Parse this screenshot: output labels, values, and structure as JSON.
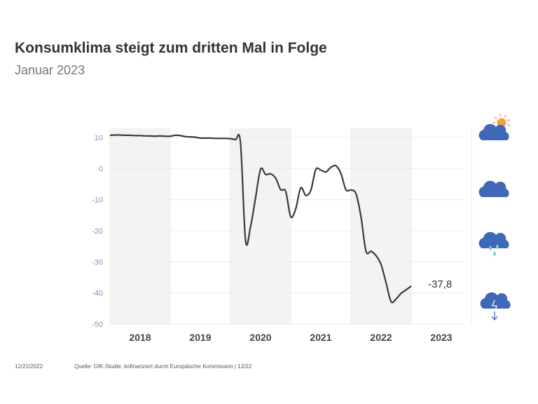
{
  "header": {
    "title": "Konsumklima steigt zum dritten Mal in Folge",
    "subtitle": "Januar 2023"
  },
  "footer": {
    "date": "12/21/2022",
    "source": "Quelle: GfK-Studie, kofinanziert durch Europäische Kommission | 12/22"
  },
  "icons": [
    "sun-behind-cloud-icon",
    "cloud-icon",
    "rain-cloud-icon",
    "storm-cloud-icon"
  ],
  "colors": {
    "line": "#3a3a3a",
    "band": "#f3f3f3",
    "grid": "#f6e9dc",
    "cloud": "#3f68b8",
    "sun": "#f0a040",
    "rain": "#7fd0d0"
  },
  "chart_data": {
    "type": "line",
    "title": "",
    "xlabel": "",
    "ylabel": "",
    "ylim": [
      -50,
      10
    ],
    "yticks": [
      "10",
      "0",
      "-10",
      "-20",
      "-30",
      "-40",
      "-50"
    ],
    "ytick_values": [
      10,
      0,
      -10,
      -20,
      -30,
      -40,
      -50
    ],
    "xticks": [
      "2018",
      "2019",
      "2020",
      "2021",
      "2022",
      "2023"
    ],
    "grid": true,
    "shaded_years": [
      "2018",
      "2020",
      "2022"
    ],
    "end_label": "-37,8",
    "x_start": "2018-01",
    "x_end": "2023-01",
    "values": [
      10.7,
      10.8,
      10.8,
      10.7,
      10.7,
      10.6,
      10.6,
      10.5,
      10.5,
      10.4,
      10.5,
      10.4,
      10.4,
      10.7,
      10.6,
      10.3,
      10.2,
      10.1,
      9.8,
      9.8,
      9.8,
      9.7,
      9.7,
      9.7,
      9.6,
      9.3,
      8.3,
      -23.1,
      -18.6,
      -9.4,
      -0.2,
      -1.9,
      -1.7,
      -3.1,
      -6.8,
      -7.3,
      -15.5,
      -12.9,
      -6.2,
      -8.6,
      -7.0,
      -0.3,
      -0.5,
      -1.1,
      0.4,
      0.9,
      -1.6,
      -6.8,
      -6.9,
      -8.1,
      -15.5,
      -26.6,
      -26.6,
      -28.0,
      -30.9,
      -36.8,
      -42.8,
      -41.9,
      -40.1,
      -39.0,
      -37.8
    ]
  }
}
